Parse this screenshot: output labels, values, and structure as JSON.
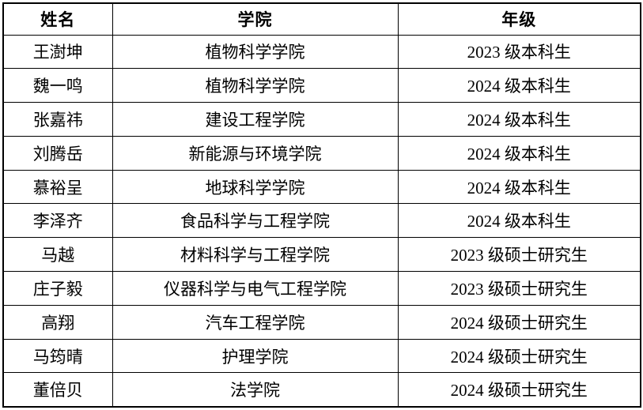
{
  "table": {
    "headers": [
      "姓名",
      "学院",
      "年级"
    ],
    "rows": [
      [
        "王澍坤",
        "植物科学学院",
        "2023 级本科生"
      ],
      [
        "魏一鸣",
        "植物科学学院",
        "2024 级本科生"
      ],
      [
        "张嘉祎",
        "建设工程学院",
        "2024 级本科生"
      ],
      [
        "刘腾岳",
        "新能源与环境学院",
        "2024 级本科生"
      ],
      [
        "慕裕呈",
        "地球科学学院",
        "2024 级本科生"
      ],
      [
        "李泽齐",
        "食品科学与工程学院",
        "2024 级本科生"
      ],
      [
        "马越",
        "材料科学与工程学院",
        "2023 级硕士研究生"
      ],
      [
        "庄子毅",
        "仪器科学与电气工程学院",
        "2023 级硕士研究生"
      ],
      [
        "高翔",
        "汽车工程学院",
        "2024 级硕士研究生"
      ],
      [
        "马筠晴",
        "护理学院",
        "2024 级硕士研究生"
      ],
      [
        "董倍贝",
        "法学院",
        "2024 级硕士研究生"
      ]
    ],
    "colors": {
      "border": "#000000",
      "text": "#000000",
      "background": "#ffffff"
    }
  }
}
